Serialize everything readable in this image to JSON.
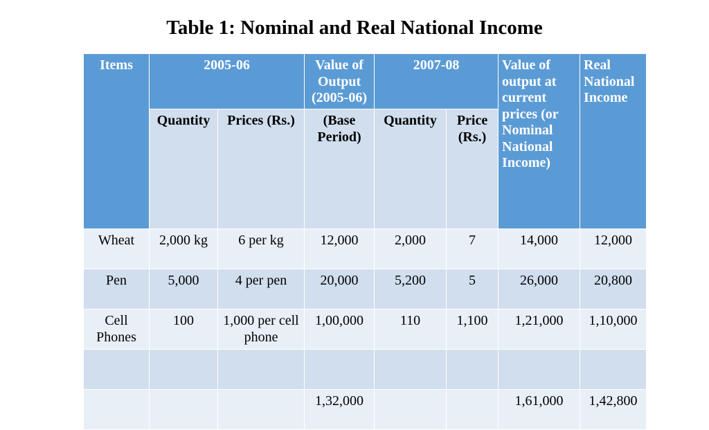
{
  "title": "Table 1: Nominal and Real National Income",
  "header": {
    "items": "Items",
    "y2005": "2005-06",
    "value_output": "Value of Output (2005-06)",
    "y2007": "2007-08",
    "value_current": "Value of output at current prices (or Nominal National Income)",
    "real_income": "Real National Income",
    "quantity_1": "Quantity",
    "prices_1": "Prices (Rs.)",
    "base_period": "(Base Period)",
    "quantity_2": "Quantity",
    "price_2": "Price (Rs.)"
  },
  "rows": [
    {
      "item": "Wheat",
      "q1": "2,000 kg",
      "p1": "6 per kg",
      "v1": "12,000",
      "q2": "2,000",
      "p2": "7",
      "nominal": "14,000",
      "real": "12,000"
    },
    {
      "item": "Pen",
      "q1": "5,000",
      "p1": "4 per pen",
      "v1": "20,000",
      "q2": "5,200",
      "p2": "5",
      "nominal": "26,000",
      "real": "20,800"
    },
    {
      "item": "Cell Phones",
      "q1": "100",
      "p1": "1,000 per cell phone",
      "v1": "1,00,000",
      "q2": "110",
      "p2": "1,100",
      "nominal": "1,21,000",
      "real": "1,10,000"
    },
    {
      "item": "",
      "q1": "",
      "p1": "",
      "v1": "",
      "q2": "",
      "p2": "",
      "nominal": "",
      "real": ""
    },
    {
      "item": "",
      "q1": "",
      "p1": "",
      "v1": "1,32,000",
      "q2": "",
      "p2": "",
      "nominal": "1,61,000",
      "real": "1,42,800"
    }
  ]
}
